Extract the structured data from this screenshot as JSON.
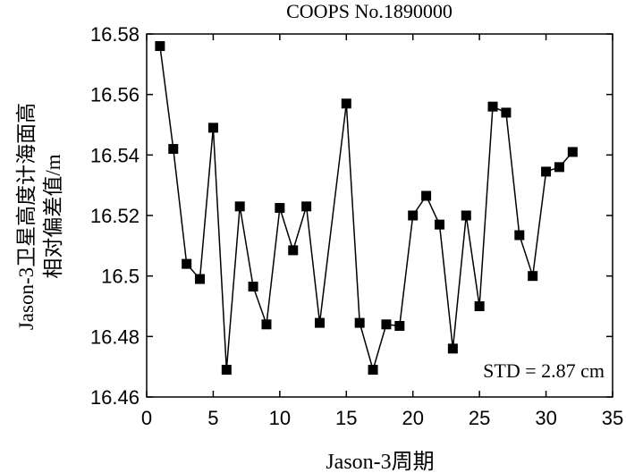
{
  "chart_data": {
    "type": "line",
    "title": "COOPS No.1890000",
    "xlabel": "Jason-3周期",
    "ylabel_lines": [
      "Jason-3卫星高度计海面高",
      "相对偏差值/m"
    ],
    "xlim": [
      0,
      35
    ],
    "ylim": [
      16.46,
      16.58
    ],
    "x_ticks": [
      0,
      5,
      10,
      15,
      20,
      25,
      30,
      35
    ],
    "y_ticks": [
      16.46,
      16.48,
      16.5,
      16.52,
      16.54,
      16.56,
      16.58
    ],
    "y_tick_labels": [
      "16.46",
      "16.48",
      "16.5",
      "16.52",
      "16.54",
      "16.56",
      "16.58"
    ],
    "annotation": "STD = 2.87 cm",
    "grid": false,
    "marker": "square",
    "series": [
      {
        "x": [
          1,
          2,
          3,
          4,
          5,
          6,
          7,
          8,
          9,
          10,
          11,
          12,
          13,
          15,
          16,
          17,
          18,
          19,
          20,
          21,
          22,
          23,
          24,
          25,
          26,
          27,
          28,
          29,
          30,
          31,
          32
        ],
        "values": [
          16.576,
          16.542,
          16.504,
          16.499,
          16.549,
          16.469,
          16.523,
          16.4965,
          16.484,
          16.5225,
          16.5085,
          16.523,
          16.4845,
          16.557,
          16.4845,
          16.469,
          16.484,
          16.4835,
          16.52,
          16.5265,
          16.517,
          16.476,
          16.52,
          16.49,
          16.556,
          16.554,
          16.5135,
          16.5,
          16.5345,
          16.536,
          16.541
        ]
      }
    ]
  }
}
